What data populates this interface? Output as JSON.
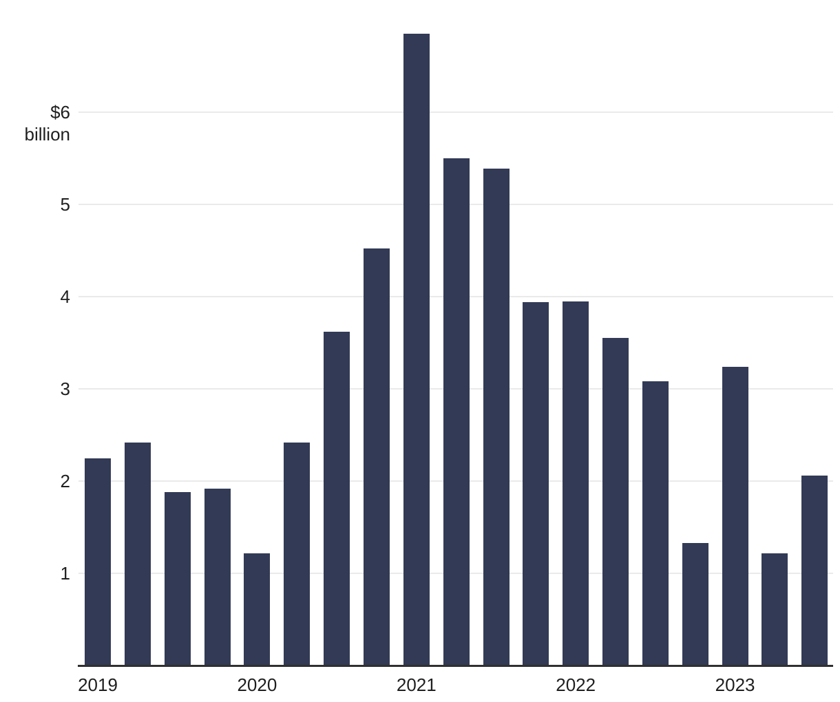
{
  "chart_data": {
    "type": "bar",
    "title": "",
    "categories": [
      "2019 Q1",
      "2019 Q2",
      "2019 Q3",
      "2019 Q4",
      "2020 Q1",
      "2020 Q2",
      "2020 Q3",
      "2020 Q4",
      "2021 Q1",
      "2021 Q2",
      "2021 Q3",
      "2021 Q4",
      "2022 Q1",
      "2022 Q2",
      "2022 Q3",
      "2022 Q4",
      "2023 Q1",
      "2023 Q2",
      "2023 Q3"
    ],
    "values": [
      2.25,
      2.42,
      1.88,
      1.92,
      1.22,
      2.42,
      3.62,
      4.52,
      6.85,
      5.5,
      5.39,
      3.94,
      3.95,
      3.55,
      3.08,
      1.33,
      3.24,
      1.22,
      2.06
    ],
    "unit": "billion USD",
    "xlabel": "",
    "ylabel": "",
    "ylim": [
      0,
      6.9
    ],
    "grid": "horizontal",
    "legend": "none",
    "x_axis": {
      "labels": [
        "2019",
        "2020",
        "2021",
        "2022",
        "2023"
      ],
      "label_bar_indices": [
        0,
        4,
        8,
        12,
        16
      ]
    },
    "y_axis": {
      "tick_values": [
        1,
        2,
        3,
        4,
        5
      ],
      "tick_labels": [
        "1",
        "2",
        "3",
        "4",
        "5"
      ],
      "top_tick_value": 6,
      "top_tick_label": "$6 billion"
    }
  },
  "colors": {
    "bar": "#323A55",
    "gridline": "#EAEAEA",
    "axis_line": "#303030",
    "text": "#1F1F1F",
    "background": "#FFFFFF"
  }
}
